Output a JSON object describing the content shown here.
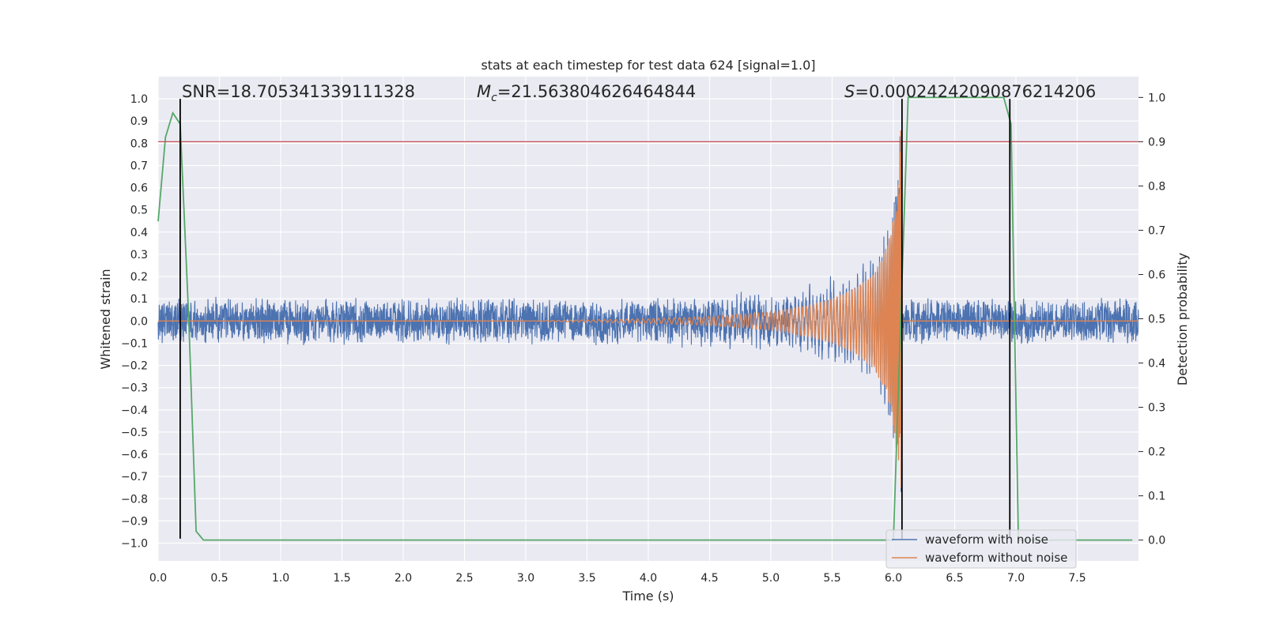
{
  "chart_data": {
    "type": "line",
    "title": "stats at each timestep for test data 624 [signal=1.0]",
    "xlabel": "Time (s)",
    "ylabel": "Whitened strain",
    "y2label": "Detection probability",
    "xlim": [
      0.0,
      8.0
    ],
    "ylim": [
      -1.08,
      1.1
    ],
    "y2lim": [
      -0.047,
      1.047
    ],
    "xticks": [
      "0.0",
      "0.5",
      "1.0",
      "1.5",
      "2.0",
      "2.5",
      "3.0",
      "3.5",
      "4.0",
      "4.5",
      "5.0",
      "5.5",
      "6.0",
      "6.5",
      "7.0",
      "7.5"
    ],
    "yticks": [
      "1.0",
      "0.9",
      "0.8",
      "0.7",
      "0.6",
      "0.5",
      "0.4",
      "0.3",
      "0.2",
      "0.1",
      "0.0",
      "−0.1",
      "−0.2",
      "−0.3",
      "−0.4",
      "−0.5",
      "−0.6",
      "−0.7",
      "−0.8",
      "−0.9",
      "−1.0"
    ],
    "y2ticks": [
      "1.0",
      "0.9",
      "0.8",
      "0.7",
      "0.6",
      "0.5",
      "0.4",
      "0.3",
      "0.2",
      "0.1",
      "0.0"
    ],
    "grid": true,
    "legend_position": "lower-right",
    "annotations": {
      "snr": "SNR=18.705341339111328",
      "mc_symbol": "M",
      "mc_sub": "c",
      "mc_value": "=21.563804626464844",
      "s_symbol": "S",
      "s_value": "=0.00024242090876214206"
    },
    "threshold": {
      "axis": "right",
      "value": 0.9,
      "color": "#c44e52"
    },
    "markers": {
      "x": [
        0.18,
        6.07,
        6.95
      ],
      "ymin": -0.98,
      "ymax": 1.0,
      "color": "#000000"
    },
    "series": [
      {
        "name": "waveform with noise",
        "color": "#4c72b0",
        "noise_amplitude": 0.11,
        "envelope": {
          "x": [
            0.0,
            3.0,
            4.0,
            4.5,
            5.0,
            5.3,
            5.5,
            5.7,
            5.85,
            5.95,
            6.0,
            6.05,
            6.07
          ],
          "y": [
            0.0,
            0.0,
            0.01,
            0.02,
            0.04,
            0.07,
            0.1,
            0.15,
            0.22,
            0.34,
            0.47,
            0.72,
            1.0
          ]
        },
        "merger_time": 6.07
      },
      {
        "name": "waveform without noise",
        "color": "#dd8452",
        "envelope": {
          "x": [
            0.0,
            3.0,
            4.0,
            4.5,
            5.0,
            5.3,
            5.5,
            5.7,
            5.85,
            5.95,
            6.0,
            6.05,
            6.07
          ],
          "y": [
            0.0,
            0.0,
            0.01,
            0.02,
            0.04,
            0.07,
            0.1,
            0.15,
            0.22,
            0.34,
            0.47,
            0.72,
            1.0
          ]
        },
        "merger_time": 6.07
      },
      {
        "name": "detection probability",
        "axis": "right",
        "color": "#55a868",
        "x": [
          0.0,
          0.06,
          0.12,
          0.18,
          0.25,
          0.31,
          0.37,
          0.45,
          6.0,
          6.06,
          6.12,
          6.2,
          6.9,
          6.96,
          7.02,
          7.1,
          7.95
        ],
        "y": [
          0.72,
          0.91,
          0.965,
          0.94,
          0.5,
          0.02,
          0.0,
          0.0,
          0.0,
          0.5,
          1.0,
          1.0,
          1.0,
          0.94,
          0.0,
          0.0,
          0.0
        ]
      }
    ],
    "legend": [
      "waveform with noise",
      "waveform without noise"
    ]
  }
}
